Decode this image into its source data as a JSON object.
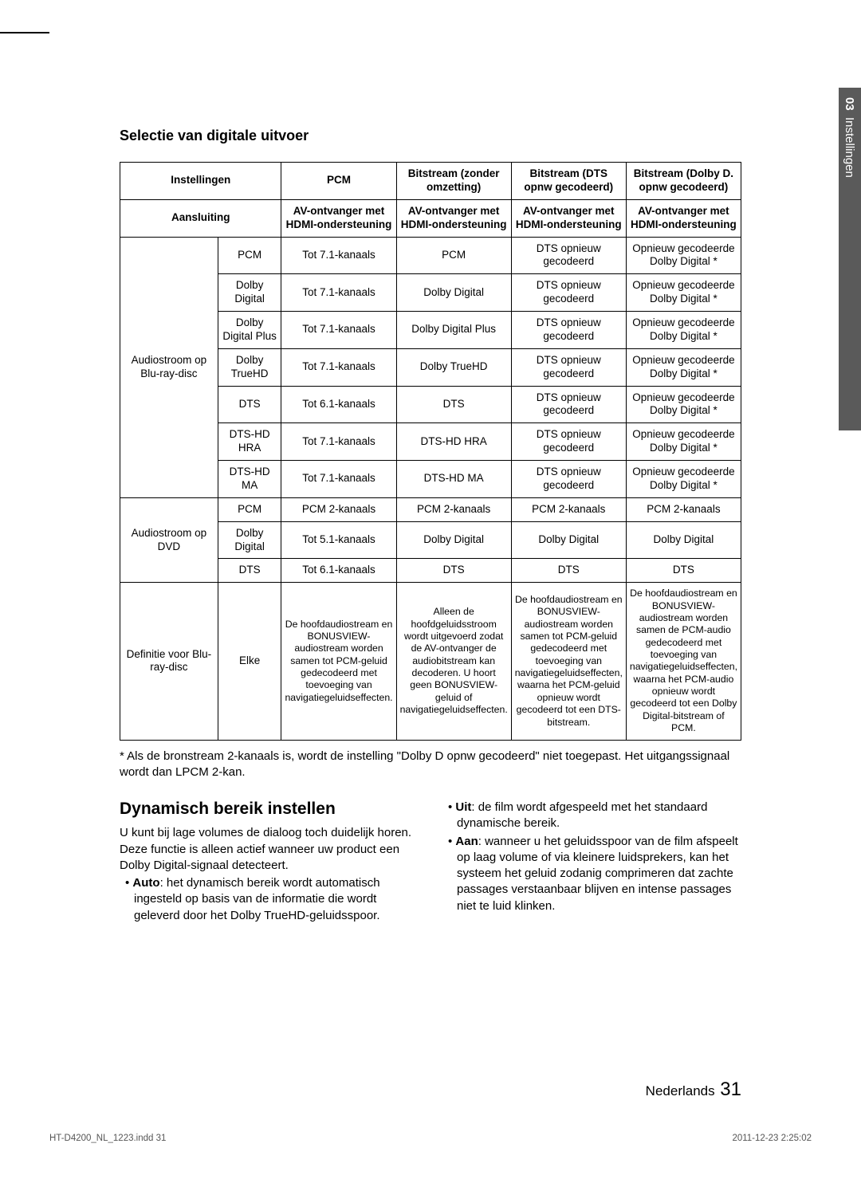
{
  "sideTab": {
    "num": "03",
    "label": "Instellingen"
  },
  "sectionHeading": "Selectie van digitale uitvoer",
  "table": {
    "header1": {
      "settings": "Instellingen",
      "pcm": "PCM",
      "bitstreamZonder": "Bitstream (zonder omzetting)",
      "bitstreamDTS": "Bitstream (DTS opnw gecodeerd)",
      "bitstreamDolby": "Bitstream (Dolby D. opnw gecodeerd)"
    },
    "header2": {
      "aansluiting": "Aansluiting",
      "av": "AV-ontvanger met HDMI-ondersteuning"
    },
    "groups": {
      "bluray": "Audiostroom op Blu-ray-disc",
      "dvd": "Audiostroom op DVD",
      "definitie": "Definitie voor Blu-ray-disc"
    },
    "audioRows": [
      {
        "fmt": "PCM",
        "pcm": "Tot 7.1-kanaals",
        "zonder": "PCM",
        "dts": "DTS opnieuw gecodeerd",
        "dolby": "Opnieuw gecodeerde Dolby Digital *"
      },
      {
        "fmt": "Dolby Digital",
        "pcm": "Tot 7.1-kanaals",
        "zonder": "Dolby Digital",
        "dts": "DTS opnieuw gecodeerd",
        "dolby": "Opnieuw gecodeerde Dolby Digital *"
      },
      {
        "fmt": "Dolby Digital Plus",
        "pcm": "Tot 7.1-kanaals",
        "zonder": "Dolby Digital Plus",
        "dts": "DTS opnieuw gecodeerd",
        "dolby": "Opnieuw gecodeerde Dolby Digital *"
      },
      {
        "fmt": "Dolby TrueHD",
        "pcm": "Tot 7.1-kanaals",
        "zonder": "Dolby TrueHD",
        "dts": "DTS opnieuw gecodeerd",
        "dolby": "Opnieuw gecodeerde Dolby Digital *"
      },
      {
        "fmt": "DTS",
        "pcm": "Tot 6.1-kanaals",
        "zonder": "DTS",
        "dts": "DTS opnieuw gecodeerd",
        "dolby": "Opnieuw gecodeerde Dolby Digital *"
      },
      {
        "fmt": "DTS-HD HRA",
        "pcm": "Tot 7.1-kanaals",
        "zonder": "DTS-HD HRA",
        "dts": "DTS opnieuw gecodeerd",
        "dolby": "Opnieuw gecodeerde Dolby Digital *"
      },
      {
        "fmt": "DTS-HD MA",
        "pcm": "Tot 7.1-kanaals",
        "zonder": "DTS-HD MA",
        "dts": "DTS opnieuw gecodeerd",
        "dolby": "Opnieuw gecodeerde Dolby Digital *"
      }
    ],
    "dvdRows": [
      {
        "fmt": "PCM",
        "pcm": "PCM 2-kanaals",
        "zonder": "PCM 2-kanaals",
        "dts": "PCM 2-kanaals",
        "dolby": "PCM 2-kanaals"
      },
      {
        "fmt": "Dolby Digital",
        "pcm": "Tot 5.1-kanaals",
        "zonder": "Dolby Digital",
        "dts": "Dolby Digital",
        "dolby": "Dolby Digital"
      },
      {
        "fmt": "DTS",
        "pcm": "Tot 6.1-kanaals",
        "zonder": "DTS",
        "dts": "DTS",
        "dolby": "DTS"
      }
    ],
    "defRow": {
      "fmt": "Elke",
      "pcm": "De hoofdaudiostream en BONUSVIEW-audiostream worden samen tot PCM-geluid gedecodeerd met toevoeging van navigatiegeluidseffecten.",
      "zonder": "Alleen de hoofdgeluidsstroom wordt uitgevoerd zodat de AV-ontvanger de audiobitstream kan decoderen. U hoort geen BONUSVIEW-geluid of navigatiegeluidseffecten.",
      "dts": "De hoofdaudiostream en BONUSVIEW-audiostream worden samen tot PCM-geluid gedecodeerd met toevoeging van navigatiegeluidseffecten, waarna het PCM-geluid opnieuw wordt gecodeerd tot een DTS-bitstream.",
      "dolby": "De hoofdaudiostream en BONUSVIEW-audiostream worden samen de PCM-audio gedecodeerd met toevoeging van navigatiegeluidseffecten, waarna het PCM-audio opnieuw wordt gecodeerd tot een Dolby Digital-bitstream of PCM."
    }
  },
  "footnote": "* Als de bronstream 2-kanaals is, wordt de instelling \"Dolby D opnw gecodeerd\" niet toegepast. Het uitgangssignaal wordt dan LPCM 2-kan.",
  "dyn": {
    "heading": "Dynamisch bereik instellen",
    "intro": "U kunt bij lage volumes de dialoog toch duidelijk horen. Deze functie is alleen actief wanneer uw product een Dolby Digital-signaal detecteert.",
    "autoLabel": "Auto",
    "autoText": ": het dynamisch bereik wordt automatisch ingesteld op basis van de informatie die wordt geleverd door het Dolby TrueHD-geluidsspoor.",
    "uitLabel": "Uit",
    "uitText": ": de film wordt afgespeeld met het standaard dynamische bereik.",
    "aanLabel": "Aan",
    "aanText": ": wanneer u het geluidsspoor van de film afspeelt op laag volume of via kleinere luidsprekers, kan het systeem het geluid zodanig comprimeren dat zachte passages verstaanbaar blijven en intense passages niet te luid klinken."
  },
  "footer": {
    "lang": "Nederlands",
    "pageNum": "31",
    "filename": "HT-D4200_NL_1223.indd  31",
    "datetime": "2011-12-23   2:25:02"
  }
}
